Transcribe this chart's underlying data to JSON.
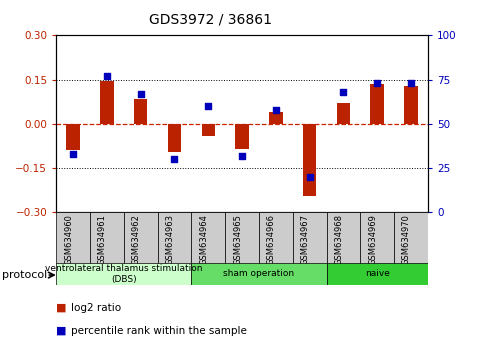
{
  "title": "GDS3972 / 36861",
  "samples": [
    "GSM634960",
    "GSM634961",
    "GSM634962",
    "GSM634963",
    "GSM634964",
    "GSM634965",
    "GSM634966",
    "GSM634967",
    "GSM634968",
    "GSM634969",
    "GSM634970"
  ],
  "log2_ratio": [
    -0.09,
    0.145,
    0.085,
    -0.095,
    -0.04,
    -0.085,
    0.04,
    -0.245,
    0.07,
    0.135,
    0.13
  ],
  "percentile_rank": [
    33,
    77,
    67,
    30,
    60,
    32,
    58,
    20,
    68,
    73,
    73
  ],
  "ylim_left": [
    -0.3,
    0.3
  ],
  "ylim_right": [
    0,
    100
  ],
  "yticks_left": [
    -0.3,
    -0.15,
    0,
    0.15,
    0.3
  ],
  "yticks_right": [
    0,
    25,
    50,
    75,
    100
  ],
  "hlines_dotted": [
    0.15,
    -0.15
  ],
  "bar_color": "#bb2200",
  "dot_color": "#0000bb",
  "zero_line_color": "#cc2200",
  "bar_width": 0.4,
  "dot_size": 22,
  "protocol_groups": [
    {
      "label": "ventrolateral thalamus stimulation\n(DBS)",
      "start": 0,
      "end": 3,
      "color": "#ccffcc"
    },
    {
      "label": "sham operation",
      "start": 4,
      "end": 7,
      "color": "#66dd66"
    },
    {
      "label": "naive",
      "start": 8,
      "end": 10,
      "color": "#33cc33"
    }
  ],
  "sample_box_color": "#cccccc",
  "legend_items": [
    {
      "color": "#bb2200",
      "label": "log2 ratio"
    },
    {
      "color": "#0000bb",
      "label": "percentile rank within the sample"
    }
  ]
}
